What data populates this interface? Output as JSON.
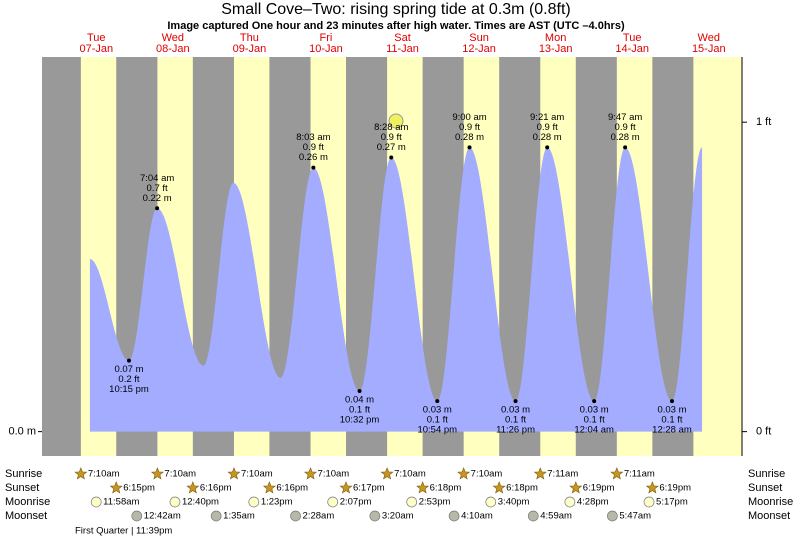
{
  "title": "Small Cove–Two: rising  spring tide at 0.3m (0.8ft)",
  "subtitle": "Image captured One hour and 23 minutes after high water. Times are AST (UTC –4.0hrs)",
  "chart_data": {
    "type": "area",
    "days": [
      {
        "weekday": "Tue",
        "date": "07-Jan"
      },
      {
        "weekday": "Wed",
        "date": "08-Jan"
      },
      {
        "weekday": "Thu",
        "date": "09-Jan"
      },
      {
        "weekday": "Fri",
        "date": "10-Jan"
      },
      {
        "weekday": "Sat",
        "date": "11-Jan"
      },
      {
        "weekday": "Sun",
        "date": "12-Jan"
      },
      {
        "weekday": "Mon",
        "date": "13-Jan"
      },
      {
        "weekday": "Tue",
        "date": "14-Jan"
      },
      {
        "weekday": "Wed",
        "date": "15-Jan"
      }
    ],
    "x": [
      10.0,
      22.25,
      31.07,
      45.6,
      55.0,
      69.8,
      80.05,
      94.53,
      104.47,
      118.9,
      129.0,
      143.43,
      153.35,
      168.07,
      177.78,
      192.47,
      201.9
    ],
    "values": [
      0.17,
      0.07,
      0.22,
      0.065,
      0.245,
      0.053,
      0.26,
      0.04,
      0.27,
      0.03,
      0.28,
      0.03,
      0.28,
      0.03,
      0.28,
      0.03,
      0.28
    ],
    "color": "#a3acff",
    "ylim": [
      -0.024,
      0.369
    ],
    "yticks": [
      {
        "value": 0,
        "label": "0.0 m"
      }
    ],
    "y2ticks": [
      {
        "value": 0,
        "label": "0 ft"
      },
      {
        "value": 0.3048,
        "label": "1 ft"
      }
    ],
    "high_waters": [
      {
        "time": "7:04 am",
        "feet": "0.7 ft",
        "meters": "0.22 m"
      },
      {
        "time": "8:03 am",
        "feet": "0.9 ft",
        "meters": "0.26 m"
      },
      {
        "time": "8:28 am",
        "feet": "0.9 ft",
        "meters": "0.27 m"
      },
      {
        "time": "9:00 am",
        "feet": "0.9 ft",
        "meters": "0.28 m"
      },
      {
        "time": "9:21 am",
        "feet": "0.9 ft",
        "meters": "0.28 m"
      },
      {
        "time": "9:47 am",
        "feet": "0.9 ft",
        "meters": "0.28 m"
      }
    ],
    "low_waters": [
      {
        "meters": "0.07 m",
        "feet": "0.2 ft",
        "time": "10:15 pm"
      },
      {
        "meters": "0.04 m",
        "feet": "0.1 ft",
        "time": "10:32 pm"
      },
      {
        "meters": "0.03 m",
        "feet": "0.1 ft",
        "time": "10:54 pm"
      },
      {
        "meters": "0.03 m",
        "feet": "0.1 ft",
        "time": "11:26 pm"
      },
      {
        "meters": "0.03 m",
        "feet": "0.1 ft",
        "time": "12:04 am"
      },
      {
        "meters": "0.03 m",
        "feet": "0.1 ft",
        "time": "12:28 am"
      }
    ]
  },
  "almanac": {
    "sunrise_label": "Sunrise",
    "sunset_label": "Sunset",
    "moonrise_label": "Moonrise",
    "moonset_label": "Moonset",
    "sunrise": [
      "7:10am",
      "7:10am",
      "7:10am",
      "7:10am",
      "7:10am",
      "7:10am",
      "7:11am",
      "7:11am"
    ],
    "sunset": [
      "6:15pm",
      "6:16pm",
      "6:16pm",
      "6:17pm",
      "6:18pm",
      "6:18pm",
      "6:19pm",
      "6:19pm"
    ],
    "moonrise": [
      "11:58am",
      "12:40pm",
      "1:23pm",
      "2:07pm",
      "2:53pm",
      "3:40pm",
      "4:28pm",
      "5:17pm"
    ],
    "moonset": [
      "12:42am",
      "1:35am",
      "2:28am",
      "3:20am",
      "4:10am",
      "4:59am",
      "5:47am"
    ],
    "moon_phase": "First Quarter | 11:39pm"
  }
}
